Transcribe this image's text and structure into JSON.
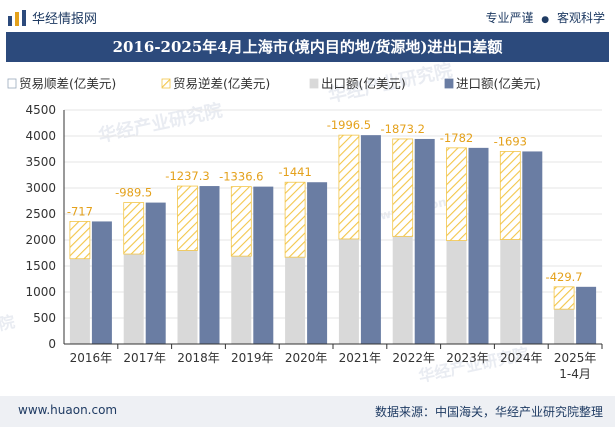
{
  "header": {
    "brand_name": "华经情报网",
    "tag1": "专业严谨",
    "tag2": "客观科学",
    "dot": "●"
  },
  "title": "2016-2025年4月上海市(境内目的地/货源地)进出口差额",
  "watermarks": [
    "华经产业研究院",
    "华经产业研究院",
    "华经产业研究院",
    "www.huaon.com",
    "院"
  ],
  "footer": {
    "site": "www.huaon.com",
    "source": "数据来源：中国海关，华经产业研究院整理"
  },
  "colors": {
    "export": "#d9d9d9",
    "import": "#6a7da3",
    "hatch": "#f3c64a",
    "header": "#2c4a7c",
    "label": "#e4a11b"
  },
  "chart_data": {
    "type": "bar",
    "categories": [
      "2016年",
      "2017年",
      "2018年",
      "2019年",
      "2020年",
      "2021年",
      "2022年",
      "2023年",
      "2024年",
      "2025年\n1-4月"
    ],
    "legend": [
      "贸易顺差(亿美元)",
      "贸易逆差(亿美元)",
      "出口额(亿美元)",
      "进口额(亿美元)"
    ],
    "legend_position": "top",
    "ylim": [
      0,
      4500
    ],
    "yticks": [
      0,
      500,
      1000,
      1500,
      2000,
      2500,
      3000,
      3500,
      4000,
      4500
    ],
    "series": [
      {
        "name": "出口额(亿美元)",
        "values": [
          1640,
          1730,
          1800,
          1690,
          1670,
          2020,
          2070,
          1990,
          2010,
          670
        ]
      },
      {
        "name": "进口额(亿美元)",
        "values": [
          2357,
          2719.5,
          3037.3,
          3026.6,
          3111,
          4016.5,
          3943.2,
          3772,
          3703,
          1099.7
        ]
      },
      {
        "name": "贸易逆差(亿美元)",
        "values": [
          -717,
          -989.5,
          -1237.3,
          -1336.6,
          -1441,
          -1996.5,
          -1873.2,
          -1782,
          -1693,
          -429.7
        ]
      },
      {
        "name": "贸易顺差(亿美元)",
        "values": [
          0,
          0,
          0,
          0,
          0,
          0,
          0,
          0,
          0,
          0
        ]
      }
    ],
    "data_labels": [
      "-717",
      "-989.5",
      "-1237.3",
      "-1336.6",
      "-1441",
      "-1996.5",
      "-1873.2",
      "-1782",
      "-1693",
      "-429.7"
    ]
  }
}
